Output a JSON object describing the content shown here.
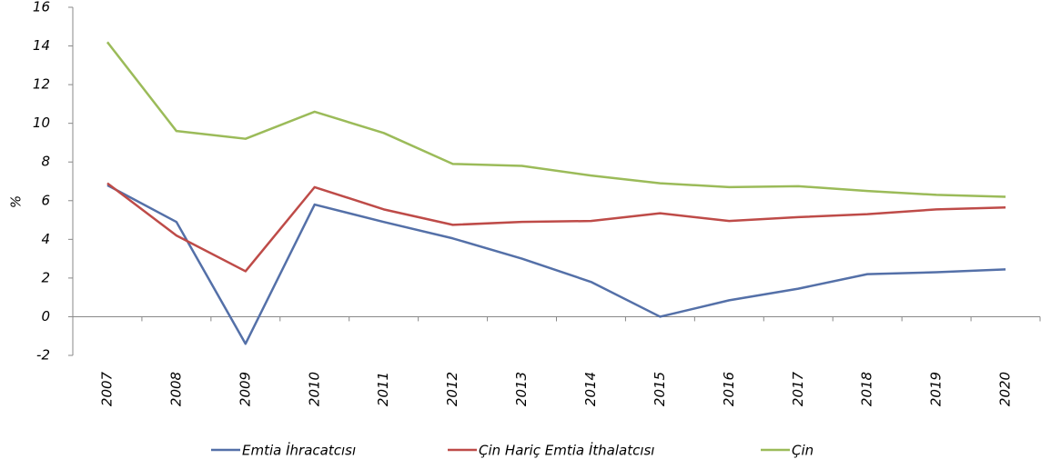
{
  "chart_data": {
    "type": "line",
    "ylabel": "%",
    "categories": [
      "2007",
      "2008",
      "2009",
      "2010",
      "2011",
      "2012",
      "2013",
      "2014",
      "2015",
      "2016",
      "2017",
      "2018",
      "2019",
      "2020"
    ],
    "series": [
      {
        "name": "Emtia İhracatcısı",
        "color": "#5470a8",
        "values": [
          6.8,
          4.9,
          -1.4,
          5.8,
          4.9,
          4.05,
          3.0,
          1.8,
          0.0,
          0.85,
          1.45,
          2.2,
          2.3,
          2.45
        ]
      },
      {
        "name": "Çin Hariç Emtia İthalatcısı",
        "color": "#be4b48",
        "values": [
          6.9,
          4.2,
          2.35,
          6.7,
          5.55,
          4.75,
          4.9,
          4.95,
          5.35,
          4.95,
          5.15,
          5.3,
          5.55,
          5.65
        ]
      },
      {
        "name": "Çin",
        "color": "#9bbb59",
        "values": [
          14.2,
          9.6,
          9.2,
          10.6,
          9.5,
          7.9,
          7.8,
          7.3,
          6.9,
          6.7,
          6.75,
          6.5,
          6.3,
          6.2
        ]
      }
    ],
    "ylim": [
      -2,
      16
    ],
    "yticks": [
      -2,
      0,
      2,
      4,
      6,
      8,
      10,
      12,
      14,
      16
    ],
    "grid": false
  }
}
